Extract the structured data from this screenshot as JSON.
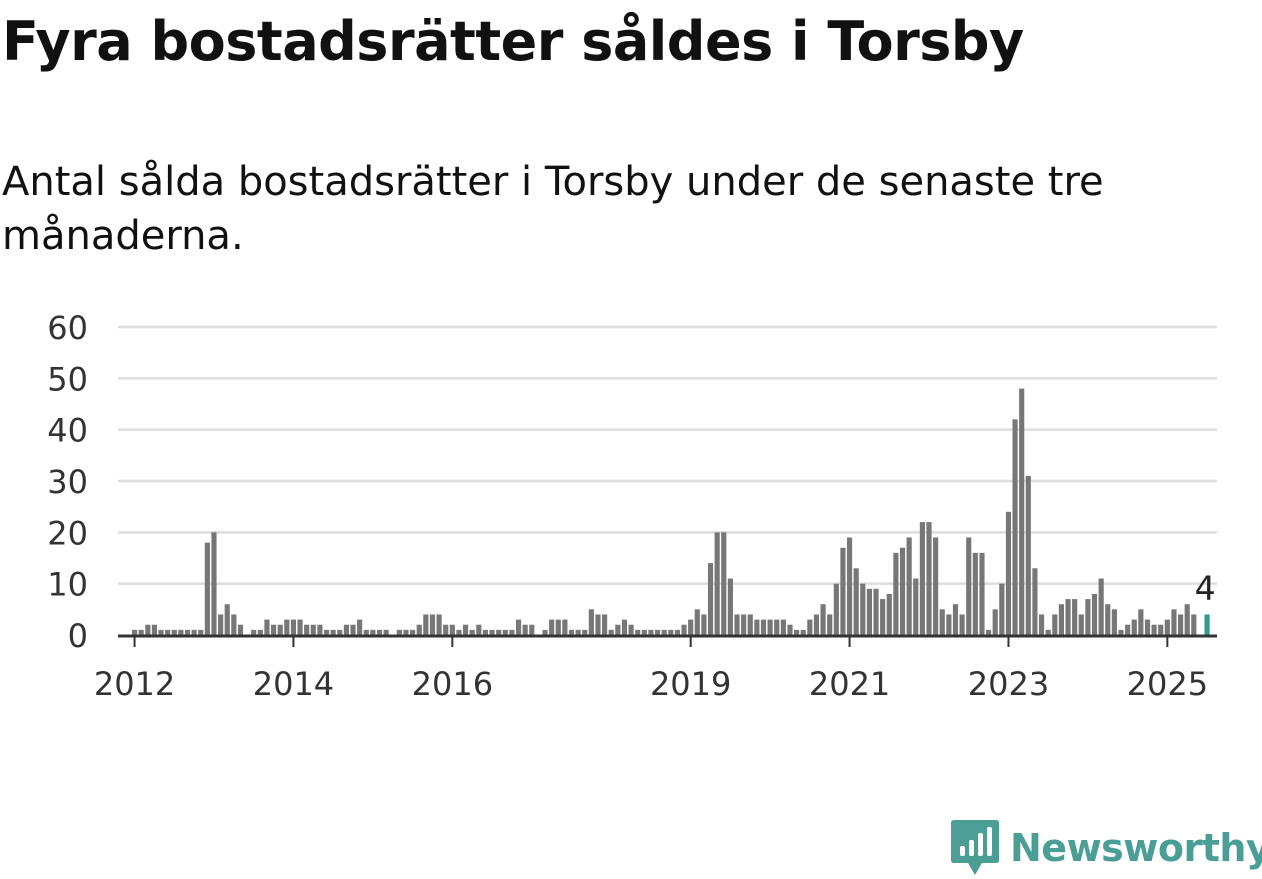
{
  "header": {
    "title": "Fyra bostadsrätter såldes i Torsby",
    "subtitle": "Antal sålda bostadsrätter i Torsby under de senaste tre månaderna."
  },
  "brand": {
    "name": "Newsworthy",
    "icon": "newsworthy-logo-icon",
    "color": "#4a9e96"
  },
  "colors": {
    "bar": "#777777",
    "highlight": "#2a9d8f",
    "grid": "#dddddd",
    "axis": "#333333"
  },
  "chart_data": {
    "type": "bar",
    "title": "",
    "xlabel": "",
    "ylabel": "",
    "ylim": [
      0,
      60
    ],
    "yticks": [
      0,
      10,
      20,
      30,
      40,
      50,
      60
    ],
    "grid": true,
    "x_start": "2011-11",
    "x_end": "2025-08",
    "xtick_labels": [
      {
        "label": "2012",
        "month": "2012-01"
      },
      {
        "label": "2014",
        "month": "2014-01"
      },
      {
        "label": "2016",
        "month": "2016-01"
      },
      {
        "label": "2019",
        "month": "2019-01"
      },
      {
        "label": "2021",
        "month": "2021-01"
      },
      {
        "label": "2023",
        "month": "2023-01"
      },
      {
        "label": "2025",
        "month": "2025-01"
      }
    ],
    "series": [
      {
        "start": "2012-01",
        "values": [
          1,
          1,
          2,
          2,
          1,
          1,
          1,
          1,
          1,
          1,
          1,
          18,
          20,
          4,
          6,
          4,
          2,
          0,
          1,
          1,
          3,
          2,
          2,
          3,
          3,
          3,
          2,
          2,
          2,
          1,
          1,
          1,
          2,
          2,
          3,
          1,
          1,
          1,
          1,
          0,
          1,
          1,
          1,
          2,
          4,
          4,
          4,
          2,
          2,
          1,
          2,
          1,
          2,
          1,
          1,
          1,
          1,
          1,
          3,
          2,
          2,
          0,
          0,
          0,
          0,
          0,
          0,
          0,
          0,
          0,
          0,
          0,
          0,
          0,
          0,
          0,
          0,
          0,
          0,
          0,
          0,
          0,
          0,
          0,
          0,
          0,
          0,
          0,
          0,
          0,
          0,
          0,
          0,
          0,
          0,
          0,
          0,
          0,
          0,
          0,
          0,
          0,
          0,
          0,
          0,
          0,
          0,
          0,
          0,
          0,
          0,
          0,
          0,
          0,
          0,
          0,
          0,
          0,
          0,
          0,
          0,
          0,
          0,
          0,
          0,
          0,
          0,
          0,
          0,
          0,
          0,
          0,
          0,
          0,
          0,
          0,
          0,
          0,
          0,
          0,
          0,
          0,
          0,
          0,
          0,
          0,
          0,
          0,
          0,
          0,
          0,
          0,
          0,
          0,
          0,
          0,
          0,
          0,
          0,
          0,
          0,
          0,
          0,
          0,
          0
        ]
      },
      {
        "start": "2017-03",
        "values": [
          1,
          3,
          3,
          3,
          1,
          1,
          1,
          5,
          4,
          4,
          1,
          2,
          3,
          2,
          1,
          1,
          1,
          1,
          1,
          1,
          1,
          2,
          3,
          5,
          4,
          14,
          20,
          20,
          11,
          4,
          4,
          4,
          3,
          3,
          3,
          3,
          3,
          2,
          1,
          1,
          3,
          4,
          6,
          4,
          10,
          17,
          19,
          13,
          10,
          9,
          9,
          7,
          8,
          16,
          17,
          19,
          11,
          22,
          22,
          19,
          5,
          4,
          6,
          4,
          19,
          16,
          16,
          1,
          5,
          10,
          24,
          42,
          48,
          31,
          13,
          4,
          1,
          4,
          6,
          7,
          7,
          4,
          7,
          8,
          11,
          6,
          5,
          1,
          2,
          3,
          5,
          3,
          2,
          2,
          3,
          5,
          4,
          6,
          4
        ]
      }
    ],
    "highlight": {
      "month": "2025-07",
      "value": 4,
      "label": "4"
    }
  }
}
